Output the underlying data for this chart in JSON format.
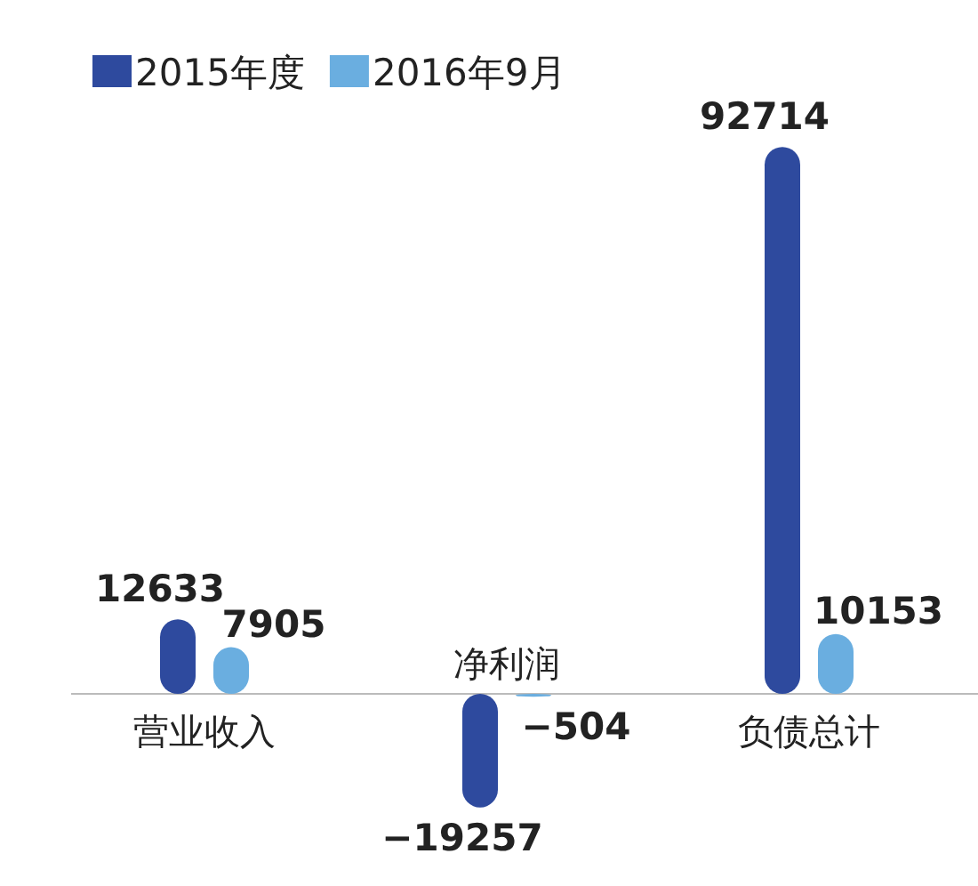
{
  "chart_data": {
    "type": "bar",
    "categories": [
      "营业收入",
      "净利润",
      "负债总计"
    ],
    "series": [
      {
        "name": "2015年度",
        "color": "#2e4a9e",
        "values": [
          12633,
          -19257,
          92714
        ]
      },
      {
        "name": "2016年9月",
        "color": "#6aaee0",
        "values": [
          7905,
          -504,
          10153
        ]
      }
    ],
    "legend": "top left",
    "data_labels": true
  }
}
